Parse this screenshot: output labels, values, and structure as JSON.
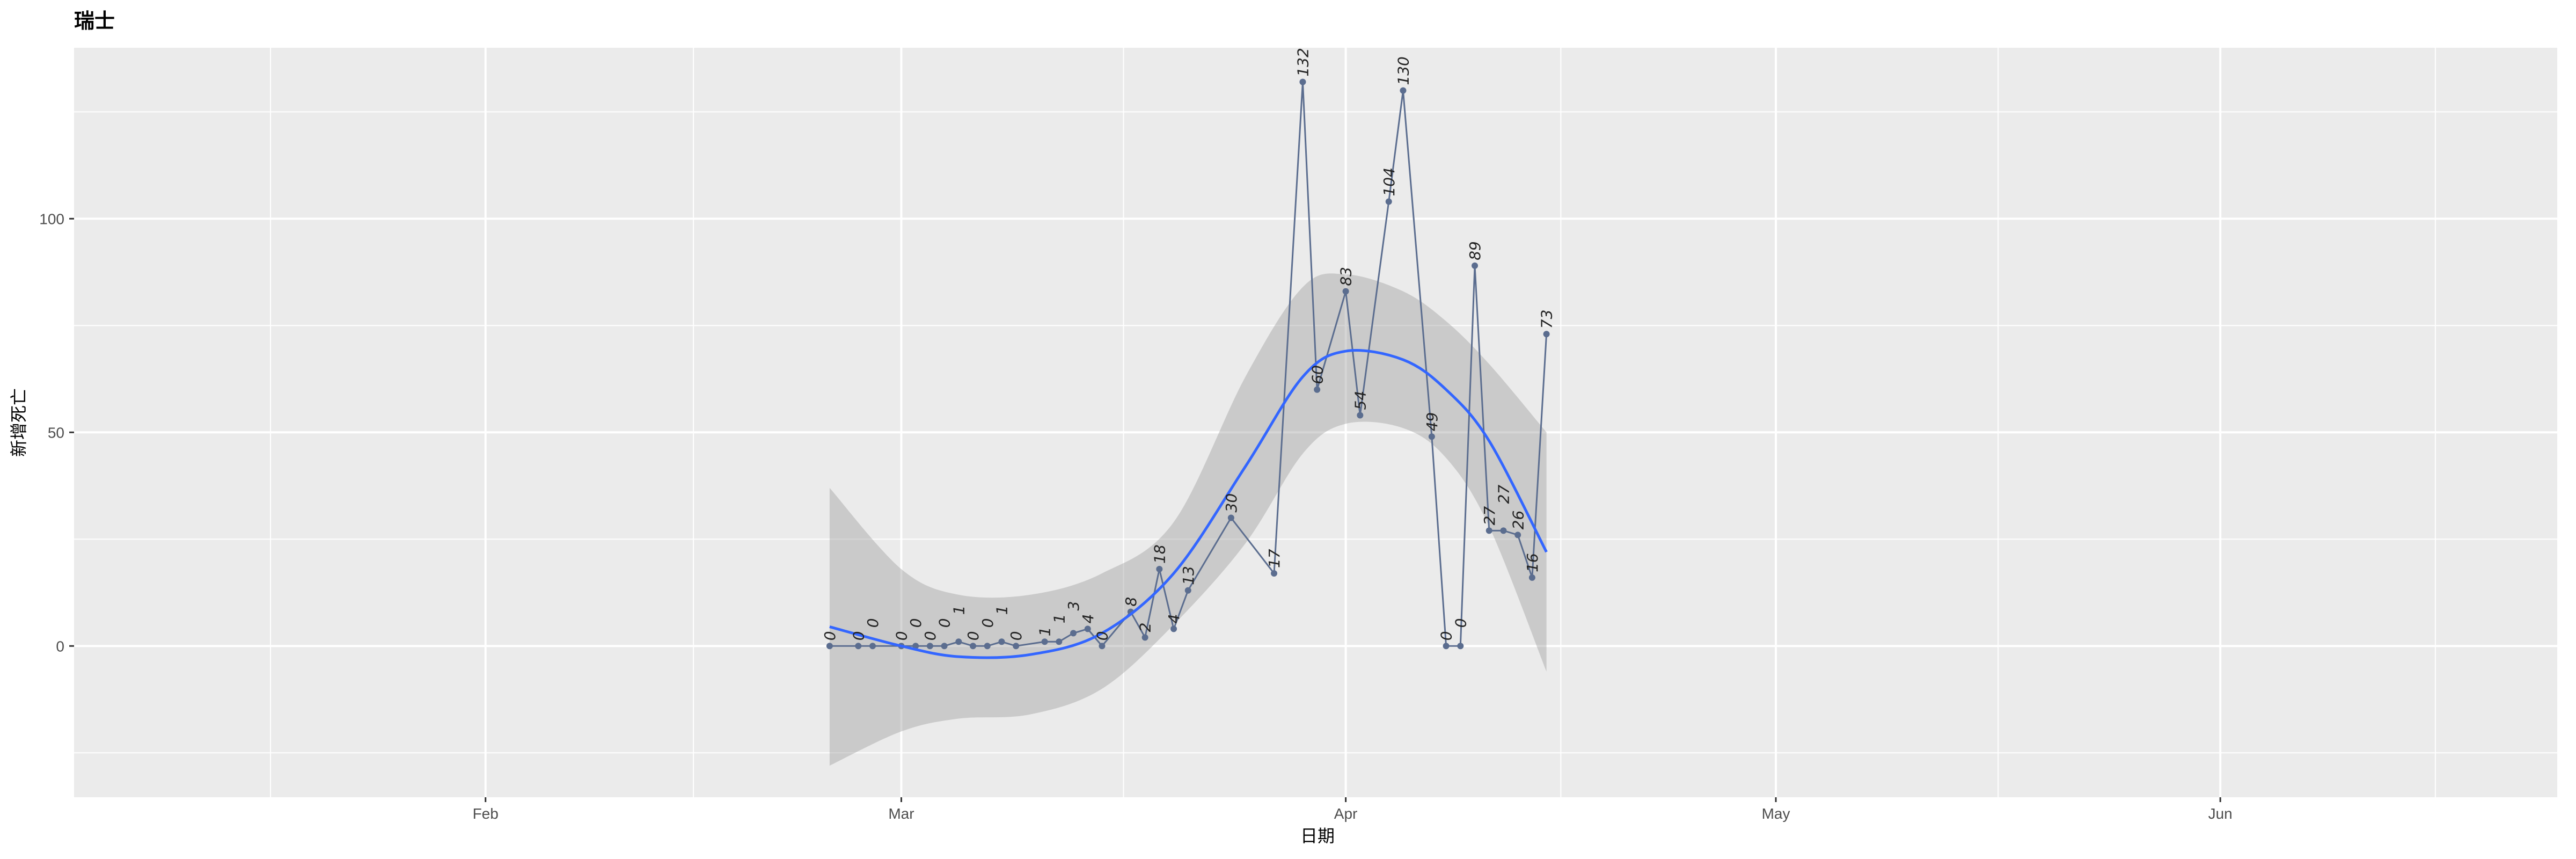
{
  "chart_data": {
    "type": "line",
    "title": "瑞士",
    "xlabel": "日期",
    "ylabel": "新增死亡",
    "xlim": [
      "2020-01-03",
      "2020-06-24"
    ],
    "ylim": [
      -35.4,
      140
    ],
    "x_ticks": [
      {
        "date": "2020-02-01",
        "label": "Feb"
      },
      {
        "date": "2020-03-01",
        "label": "Mar"
      },
      {
        "date": "2020-04-01",
        "label": "Apr"
      },
      {
        "date": "2020-05-01",
        "label": "May"
      },
      {
        "date": "2020-06-01",
        "label": "Jun"
      }
    ],
    "y_ticks": [
      0,
      50,
      100
    ],
    "y_minor": [
      -25,
      25,
      75,
      125
    ],
    "grid": true,
    "colors": {
      "panel": "#ebebeb",
      "grid": "#ffffff",
      "line": "#5b6d8f",
      "smooth": "#3366ff",
      "ribbon": "#c4c4c4"
    },
    "series": [
      {
        "name": "新增死亡",
        "points": [
          {
            "x": "2020-02-25",
            "y": 0
          },
          {
            "x": "2020-02-27",
            "y": 0
          },
          {
            "x": "2020-02-28",
            "y": 0
          },
          {
            "x": "2020-03-01",
            "y": 0
          },
          {
            "x": "2020-03-02",
            "y": 0
          },
          {
            "x": "2020-03-03",
            "y": 0
          },
          {
            "x": "2020-03-04",
            "y": 0
          },
          {
            "x": "2020-03-05",
            "y": 1
          },
          {
            "x": "2020-03-06",
            "y": 0
          },
          {
            "x": "2020-03-07",
            "y": 0
          },
          {
            "x": "2020-03-08",
            "y": 1
          },
          {
            "x": "2020-03-09",
            "y": 0
          },
          {
            "x": "2020-03-11",
            "y": 1
          },
          {
            "x": "2020-03-12",
            "y": 1
          },
          {
            "x": "2020-03-13",
            "y": 3
          },
          {
            "x": "2020-03-14",
            "y": 4
          },
          {
            "x": "2020-03-15",
            "y": 0
          },
          {
            "x": "2020-03-17",
            "y": 8
          },
          {
            "x": "2020-03-18",
            "y": 2
          },
          {
            "x": "2020-03-19",
            "y": 18
          },
          {
            "x": "2020-03-20",
            "y": 4
          },
          {
            "x": "2020-03-21",
            "y": 13
          },
          {
            "x": "2020-03-24",
            "y": 30
          },
          {
            "x": "2020-03-27",
            "y": 17
          },
          {
            "x": "2020-03-29",
            "y": 132
          },
          {
            "x": "2020-03-30",
            "y": 60
          },
          {
            "x": "2020-04-01",
            "y": 83
          },
          {
            "x": "2020-04-02",
            "y": 54
          },
          {
            "x": "2020-04-04",
            "y": 104
          },
          {
            "x": "2020-04-05",
            "y": 130
          },
          {
            "x": "2020-04-07",
            "y": 49
          },
          {
            "x": "2020-04-08",
            "y": 0
          },
          {
            "x": "2020-04-09",
            "y": 0
          },
          {
            "x": "2020-04-10",
            "y": 89
          },
          {
            "x": "2020-04-11",
            "y": 27
          },
          {
            "x": "2020-04-12",
            "y": 27
          },
          {
            "x": "2020-04-13",
            "y": 26
          },
          {
            "x": "2020-04-14",
            "y": 16
          },
          {
            "x": "2020-04-15",
            "y": 73
          }
        ]
      }
    ],
    "smooth": [
      {
        "x": "2020-02-25",
        "y": 4.5,
        "lo": -28,
        "hi": 37
      },
      {
        "x": "2020-03-01",
        "y": 0,
        "lo": -20,
        "hi": 18
      },
      {
        "x": "2020-03-05",
        "y": -2.5,
        "lo": -17,
        "hi": 12
      },
      {
        "x": "2020-03-10",
        "y": -2,
        "lo": -16,
        "hi": 12
      },
      {
        "x": "2020-03-15",
        "y": 3,
        "lo": -10,
        "hi": 17
      },
      {
        "x": "2020-03-20",
        "y": 17,
        "lo": 5,
        "hi": 29
      },
      {
        "x": "2020-03-25",
        "y": 42,
        "lo": 24,
        "hi": 63
      },
      {
        "x": "2020-03-29",
        "y": 63,
        "lo": 45,
        "hi": 84
      },
      {
        "x": "2020-04-01",
        "y": 69,
        "lo": 52,
        "hi": 87
      },
      {
        "x": "2020-04-05",
        "y": 67,
        "lo": 51,
        "hi": 83
      },
      {
        "x": "2020-04-08",
        "y": 60,
        "lo": 44,
        "hi": 76
      },
      {
        "x": "2020-04-11",
        "y": 48,
        "lo": 28,
        "hi": 66
      },
      {
        "x": "2020-04-15",
        "y": 22,
        "lo": -6,
        "hi": 50
      }
    ]
  }
}
